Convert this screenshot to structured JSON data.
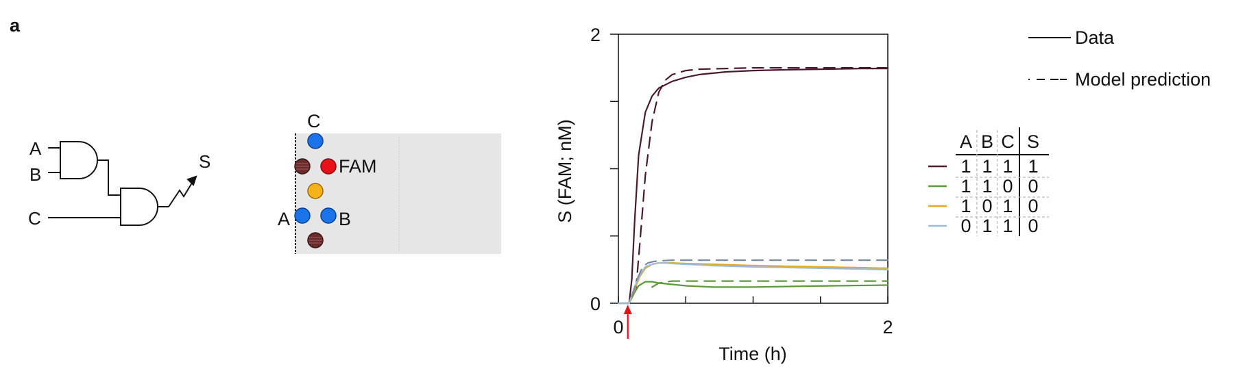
{
  "panel_label": "a",
  "circuit": {
    "inputs": [
      "A",
      "B",
      "C"
    ],
    "output": "S"
  },
  "origami": {
    "labels": {
      "c": "C",
      "a": "A",
      "b": "B",
      "reporter": "FAM"
    },
    "colors": {
      "input": "#1a73e8",
      "reporter": "#e8111a",
      "gate": "#f6b21b",
      "quencher": "#6a2b2b",
      "surface": "#e6e6e6"
    }
  },
  "legend": {
    "data_label": "Data",
    "model_label": "Model prediction"
  },
  "truth_table": {
    "headers": [
      "A",
      "B",
      "C",
      "S"
    ],
    "rows": [
      {
        "values": [
          "1",
          "1",
          "1",
          "1"
        ],
        "color": "#4a1a2c"
      },
      {
        "values": [
          "1",
          "1",
          "0",
          "0"
        ],
        "color": "#5a9a3a"
      },
      {
        "values": [
          "1",
          "0",
          "1",
          "0"
        ],
        "color": "#e8a820"
      },
      {
        "values": [
          "0",
          "1",
          "1",
          "0"
        ],
        "color": "#9bbcd8"
      }
    ]
  },
  "chart_data": {
    "type": "line",
    "xlabel": "Time (h)",
    "ylabel": "S (FAM; nM)",
    "xlim": [
      0,
      2
    ],
    "ylim": [
      0,
      2
    ],
    "x_ticks": [
      0,
      0.5,
      1,
      1.5,
      2
    ],
    "x_tick_labels": [
      "0",
      "",
      "",
      "",
      "2"
    ],
    "y_ticks": [
      0,
      0.5,
      1,
      1.5,
      2
    ],
    "y_tick_labels": [
      "0",
      "",
      "",
      "",
      "2"
    ],
    "marker": {
      "x": 0.07,
      "color": "#e8111a"
    },
    "series": [
      {
        "id": "d1111",
        "kind": "data",
        "color": "#4a1a2c",
        "x": [
          0,
          0.08,
          0.1,
          0.12,
          0.15,
          0.2,
          0.25,
          0.3,
          0.4,
          0.5,
          0.6,
          0.8,
          1.0,
          1.2,
          1.5,
          1.8,
          2.0
        ],
        "y": [
          0,
          0.0,
          0.18,
          0.6,
          1.1,
          1.42,
          1.54,
          1.6,
          1.65,
          1.68,
          1.7,
          1.72,
          1.73,
          1.735,
          1.74,
          1.745,
          1.745
        ]
      },
      {
        "id": "m1111",
        "kind": "model",
        "color": "#4a1a2c",
        "x": [
          0.13,
          0.16,
          0.2,
          0.25,
          0.3,
          0.35,
          0.4,
          0.5,
          0.6,
          0.8,
          1.0,
          1.3,
          1.6,
          2.0
        ],
        "y": [
          0.1,
          0.45,
          0.95,
          1.35,
          1.57,
          1.66,
          1.7,
          1.73,
          1.74,
          1.745,
          1.75,
          1.75,
          1.75,
          1.75
        ]
      },
      {
        "id": "d1100",
        "kind": "data",
        "color": "#5a9a3a",
        "x": [
          0,
          0.08,
          0.12,
          0.15,
          0.2,
          0.25,
          0.3,
          0.4,
          0.5,
          0.7,
          1.0,
          1.3,
          1.6,
          2.0
        ],
        "y": [
          0,
          0.0,
          0.08,
          0.13,
          0.16,
          0.16,
          0.15,
          0.14,
          0.13,
          0.12,
          0.12,
          0.125,
          0.13,
          0.135
        ]
      },
      {
        "id": "m1100",
        "kind": "model",
        "color": "#5a9a3a",
        "x": [
          0.25,
          0.3,
          0.4,
          0.6,
          1.0,
          1.5,
          2.0
        ],
        "y": [
          0.12,
          0.15,
          0.165,
          0.165,
          0.165,
          0.165,
          0.165
        ]
      },
      {
        "id": "d1010",
        "kind": "data",
        "color": "#e8a820",
        "x": [
          0,
          0.08,
          0.12,
          0.16,
          0.2,
          0.25,
          0.3,
          0.35,
          0.4,
          0.5,
          0.7,
          1.0,
          1.5,
          2.0
        ],
        "y": [
          0,
          0.0,
          0.1,
          0.2,
          0.26,
          0.29,
          0.3,
          0.3,
          0.3,
          0.295,
          0.29,
          0.28,
          0.27,
          0.26
        ]
      },
      {
        "id": "d0111",
        "kind": "data",
        "color": "#9bbcd8",
        "x": [
          0,
          0.08,
          0.12,
          0.16,
          0.2,
          0.25,
          0.3,
          0.35,
          0.4,
          0.5,
          0.7,
          1.0,
          1.5,
          2.0
        ],
        "y": [
          0,
          0.0,
          0.12,
          0.21,
          0.27,
          0.29,
          0.3,
          0.3,
          0.295,
          0.29,
          0.28,
          0.27,
          0.26,
          0.25
        ]
      },
      {
        "id": "mlow",
        "kind": "model",
        "color": "#7a8aa0",
        "x": [
          0.1,
          0.14,
          0.18,
          0.22,
          0.26,
          0.3,
          0.4,
          0.6,
          1.0,
          1.5,
          2.0
        ],
        "y": [
          0.05,
          0.18,
          0.27,
          0.3,
          0.31,
          0.315,
          0.32,
          0.32,
          0.32,
          0.32,
          0.32
        ]
      }
    ]
  }
}
